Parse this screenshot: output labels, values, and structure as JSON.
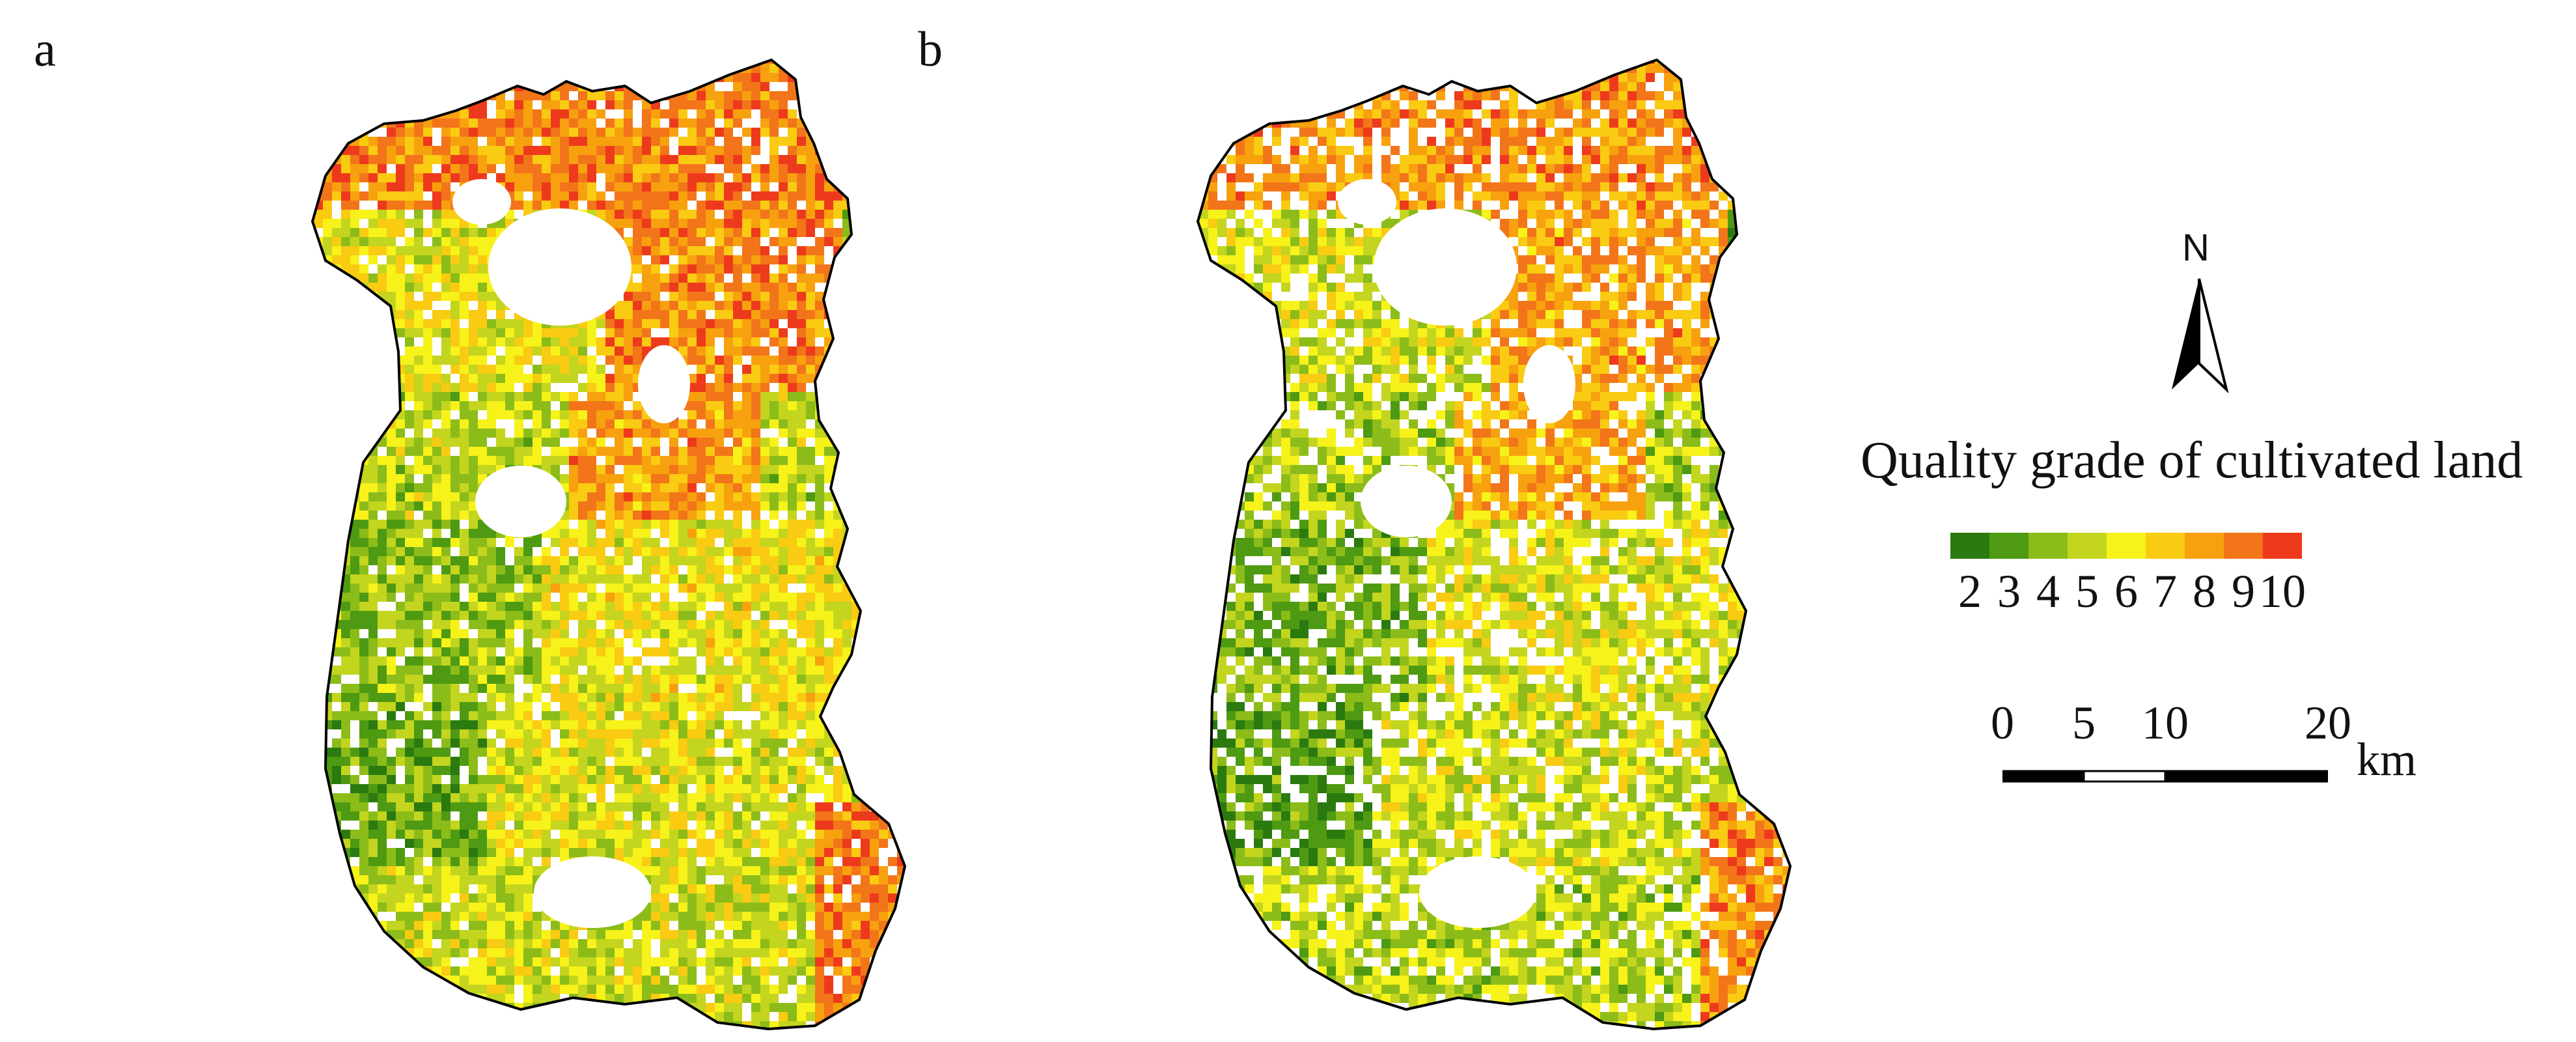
{
  "panels": [
    {
      "label": "a"
    },
    {
      "label": "b"
    }
  ],
  "north_arrow": {
    "letter": "N",
    "icon": "north-arrow-icon"
  },
  "legend": {
    "title": "Quality grade of cultivated land",
    "grades": [
      "2",
      "3",
      "4",
      "5",
      "6",
      "7",
      "8",
      "9",
      "10"
    ],
    "colors": [
      "#2a7a0f",
      "#4e9a12",
      "#8cbc19",
      "#c3d51e",
      "#f6f21a",
      "#f9cb12",
      "#f7a10f",
      "#f2751a",
      "#ee3a1c"
    ]
  },
  "scale_bar": {
    "ticks": [
      "0",
      "5",
      "10",
      "20"
    ],
    "tick_values": [
      0,
      5,
      10,
      20
    ],
    "unit": "km"
  }
}
